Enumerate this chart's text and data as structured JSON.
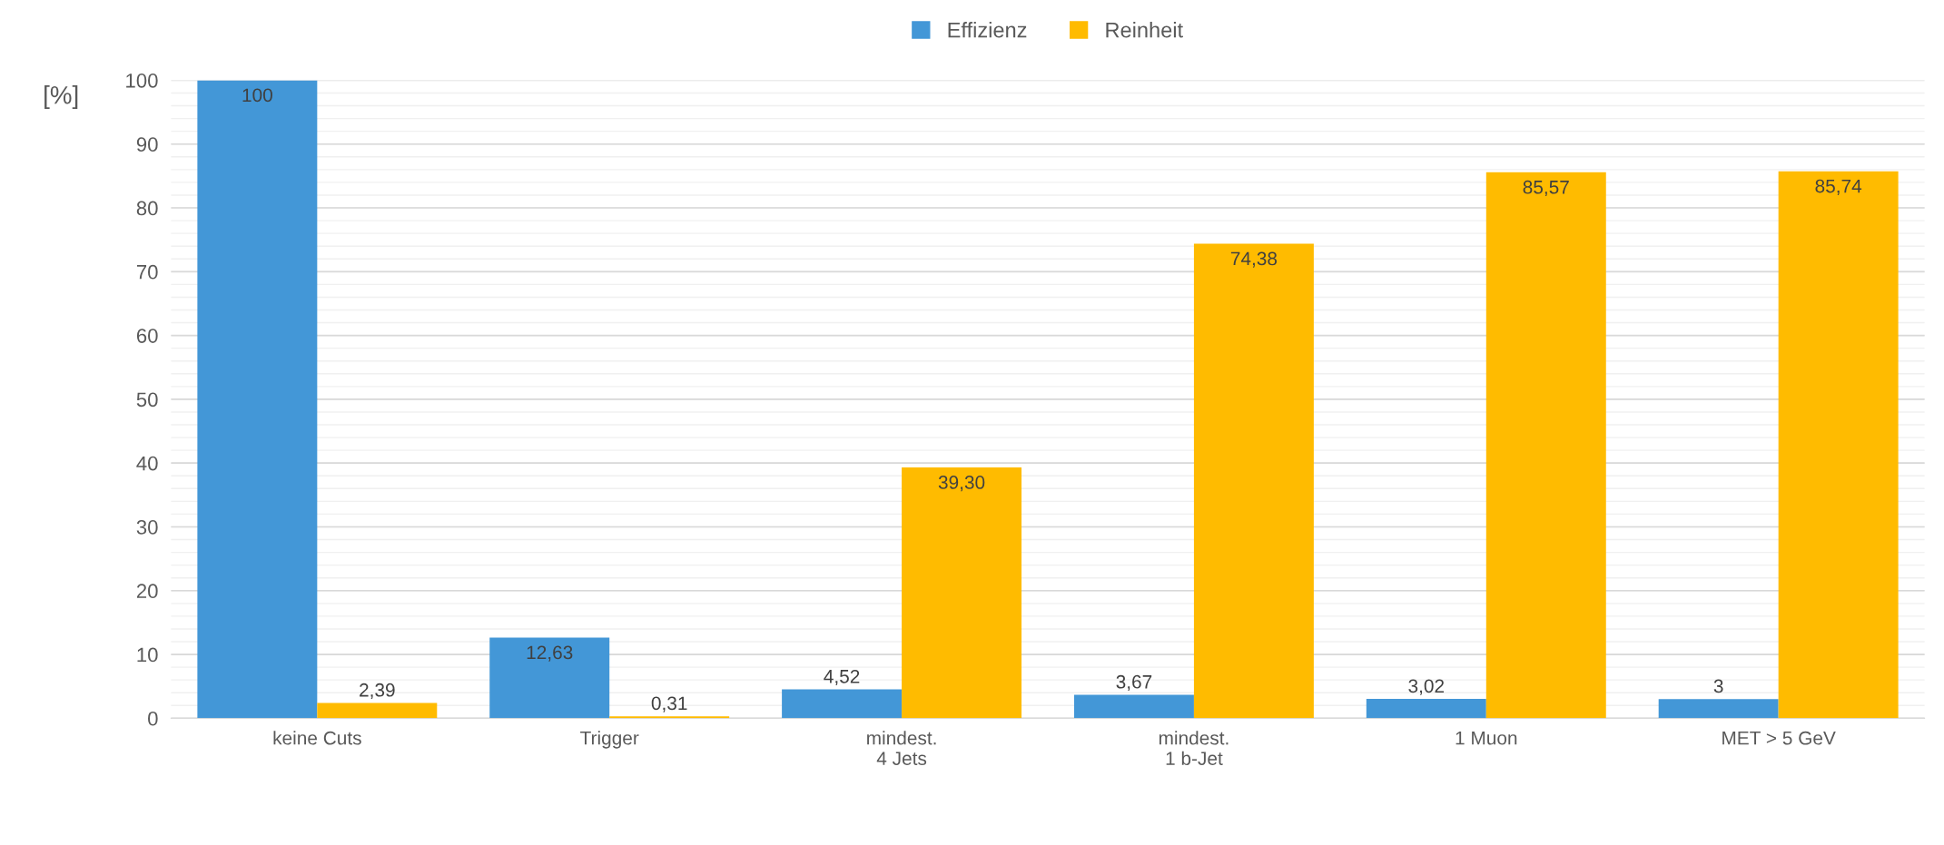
{
  "chart_data": {
    "type": "bar",
    "ylabel": "[%]",
    "categories": [
      "keine Cuts",
      "Trigger",
      "mindest.\n4 Jets",
      "mindest.\n1 b-Jet",
      "1 Muon",
      "MET > 5 GeV"
    ],
    "series": [
      {
        "name": "Effizienz",
        "color": "#4397d7",
        "values": [
          100,
          12.63,
          4.52,
          3.67,
          3.02,
          3
        ],
        "value_labels": [
          "100",
          "12,63",
          "4,52",
          "3,67",
          "3,02",
          "3"
        ]
      },
      {
        "name": "Reinheit",
        "color": "#ffbb00",
        "values": [
          2.39,
          0.31,
          39.3,
          74.38,
          85.57,
          85.74
        ],
        "value_labels": [
          "2,39",
          "0,31",
          "39,30",
          "74,38",
          "85,57",
          "85,74"
        ]
      }
    ],
    "ylim": [
      0,
      100
    ],
    "yticks": [
      0,
      10,
      20,
      30,
      40,
      50,
      60,
      70,
      80,
      90,
      100
    ],
    "grid": "y",
    "legend": "top"
  }
}
